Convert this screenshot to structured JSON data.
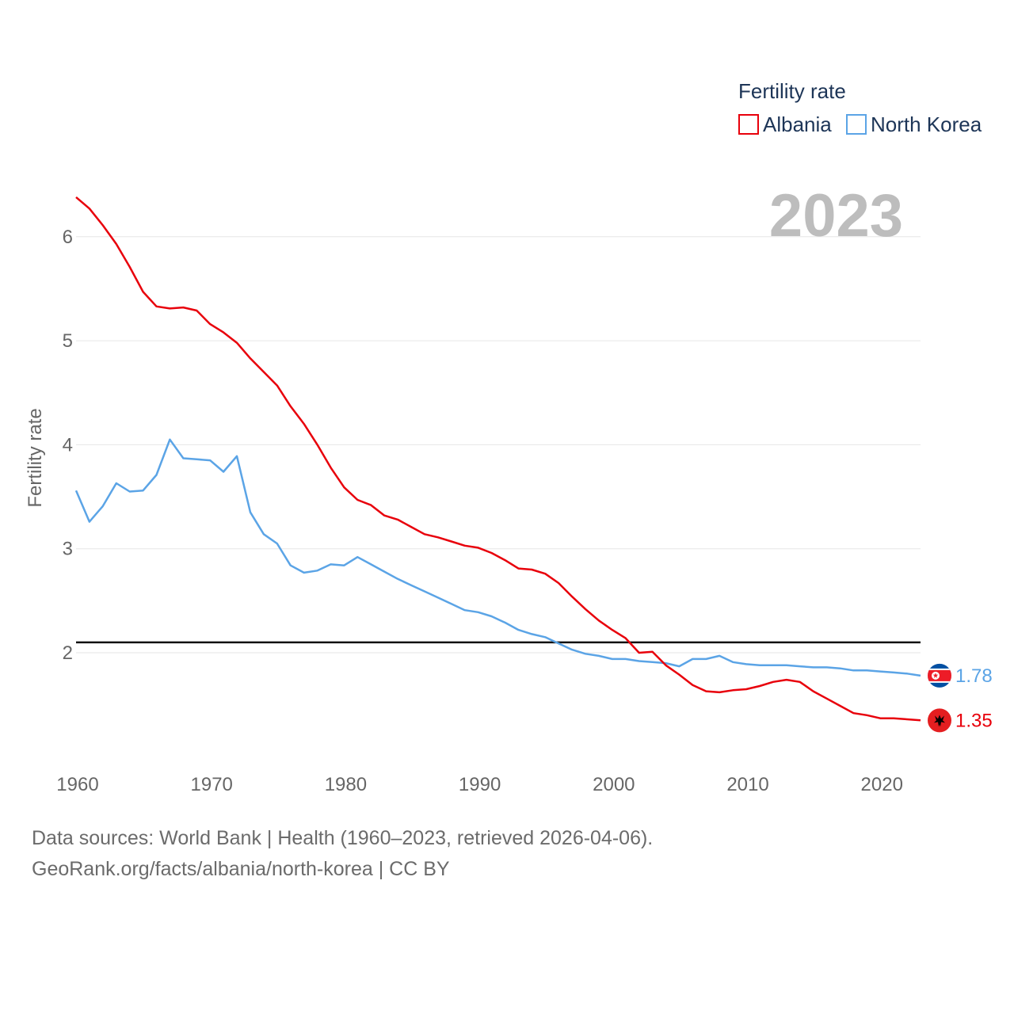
{
  "chart_data": {
    "type": "line",
    "title": "Fertility rate",
    "ylabel": "Fertility rate",
    "xlabel": "",
    "current_year": "2023",
    "xlim": [
      1960,
      2023
    ],
    "ylim": [
      1,
      6.5
    ],
    "yticks": [
      2,
      3,
      4,
      5,
      6
    ],
    "xticks": [
      1960,
      1970,
      1980,
      1990,
      2000,
      2010,
      2020
    ],
    "reference_line": 2.1,
    "legend_placement": "top-right",
    "x": [
      1960,
      1961,
      1962,
      1963,
      1964,
      1965,
      1966,
      1967,
      1968,
      1969,
      1970,
      1971,
      1972,
      1973,
      1974,
      1975,
      1976,
      1977,
      1978,
      1979,
      1980,
      1981,
      1982,
      1983,
      1984,
      1985,
      1986,
      1987,
      1988,
      1989,
      1990,
      1991,
      1992,
      1993,
      1994,
      1995,
      1996,
      1997,
      1998,
      1999,
      2000,
      2001,
      2002,
      2003,
      2004,
      2005,
      2006,
      2007,
      2008,
      2009,
      2010,
      2011,
      2012,
      2013,
      2014,
      2015,
      2016,
      2017,
      2018,
      2019,
      2020,
      2021,
      2022,
      2023
    ],
    "series": [
      {
        "name": "Albania",
        "color": "#e8000b",
        "end_label": "1.35",
        "values": [
          6.38,
          6.27,
          6.11,
          5.93,
          5.71,
          5.47,
          5.33,
          5.31,
          5.32,
          5.29,
          5.16,
          5.08,
          4.98,
          4.83,
          4.7,
          4.57,
          4.37,
          4.2,
          4.0,
          3.78,
          3.59,
          3.47,
          3.42,
          3.32,
          3.28,
          3.21,
          3.14,
          3.11,
          3.07,
          3.03,
          3.01,
          2.96,
          2.89,
          2.81,
          2.8,
          2.76,
          2.67,
          2.54,
          2.42,
          2.31,
          2.22,
          2.14,
          2.0,
          2.01,
          1.88,
          1.79,
          1.69,
          1.63,
          1.62,
          1.64,
          1.65,
          1.68,
          1.72,
          1.74,
          1.72,
          1.63,
          1.56,
          1.49,
          1.42,
          1.4,
          1.37,
          1.37,
          1.36,
          1.35
        ]
      },
      {
        "name": "North Korea",
        "color": "#5ba4e6",
        "end_label": "1.78",
        "values": [
          3.56,
          3.26,
          3.41,
          3.63,
          3.55,
          3.56,
          3.71,
          4.05,
          3.87,
          3.86,
          3.85,
          3.74,
          3.89,
          3.35,
          3.14,
          3.05,
          2.84,
          2.77,
          2.79,
          2.85,
          2.84,
          2.92,
          2.85,
          2.78,
          2.71,
          2.65,
          2.59,
          2.53,
          2.47,
          2.41,
          2.39,
          2.35,
          2.29,
          2.22,
          2.18,
          2.15,
          2.09,
          2.03,
          1.99,
          1.97,
          1.94,
          1.94,
          1.92,
          1.91,
          1.9,
          1.87,
          1.94,
          1.94,
          1.97,
          1.91,
          1.89,
          1.88,
          1.88,
          1.88,
          1.87,
          1.86,
          1.86,
          1.85,
          1.83,
          1.83,
          1.82,
          1.81,
          1.8,
          1.78
        ]
      }
    ]
  },
  "footer": {
    "source_line": "Data sources: World Bank | Health (1960–2023, retrieved 2026-04-06).",
    "license_line": "GeoRank.org/facts/albania/north-korea | CC BY"
  },
  "colors": {
    "grid": "#e6e6e6",
    "reference_line": "#111111",
    "tick_text": "#666666",
    "legend_text": "#1d3557",
    "year_watermark": "#bdbdbd"
  }
}
